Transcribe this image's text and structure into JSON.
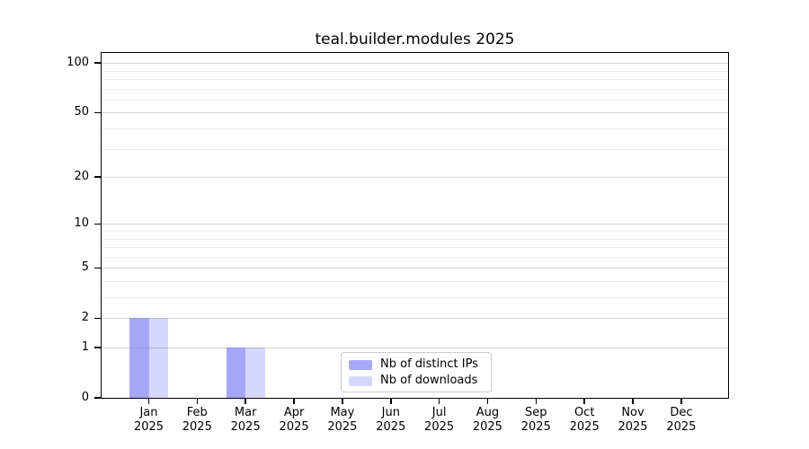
{
  "chart_data": {
    "type": "bar",
    "title": "teal.builder.modules 2025",
    "categories": [
      "Jan 2025",
      "Feb 2025",
      "Mar 2025",
      "Apr 2025",
      "May 2025",
      "Jun 2025",
      "Jul 2025",
      "Aug 2025",
      "Sep 2025",
      "Oct 2025",
      "Nov 2025",
      "Dec 2025"
    ],
    "series": [
      {
        "name": "Nb of distinct IPs",
        "color": "rgba(108,108,242,0.6)",
        "values": [
          2,
          0,
          1,
          0,
          0,
          0,
          0,
          0,
          0,
          0,
          0,
          0
        ]
      },
      {
        "name": "Nb of downloads",
        "color": "rgba(108,108,242,0.27)",
        "values": [
          2,
          0,
          1,
          0,
          0,
          0,
          0,
          0,
          0,
          0,
          0,
          0
        ]
      }
    ],
    "xlabel": "",
    "ylabel": "",
    "yscale": "log1p",
    "ylim": [
      0,
      115
    ],
    "yticks": [
      0,
      1,
      2,
      5,
      10,
      20,
      50,
      100
    ],
    "minor_yticks": [
      3,
      4,
      6,
      7,
      8,
      9,
      30,
      40,
      60,
      70,
      80,
      90
    ],
    "grid": "horizontal",
    "legend_position": "bottom-center",
    "colors": {
      "bar_base": "#6c6cf2",
      "major_grid": "#d2d2d2",
      "minor_grid": "#ececec",
      "axis": "#000000",
      "text": "#000000"
    }
  }
}
